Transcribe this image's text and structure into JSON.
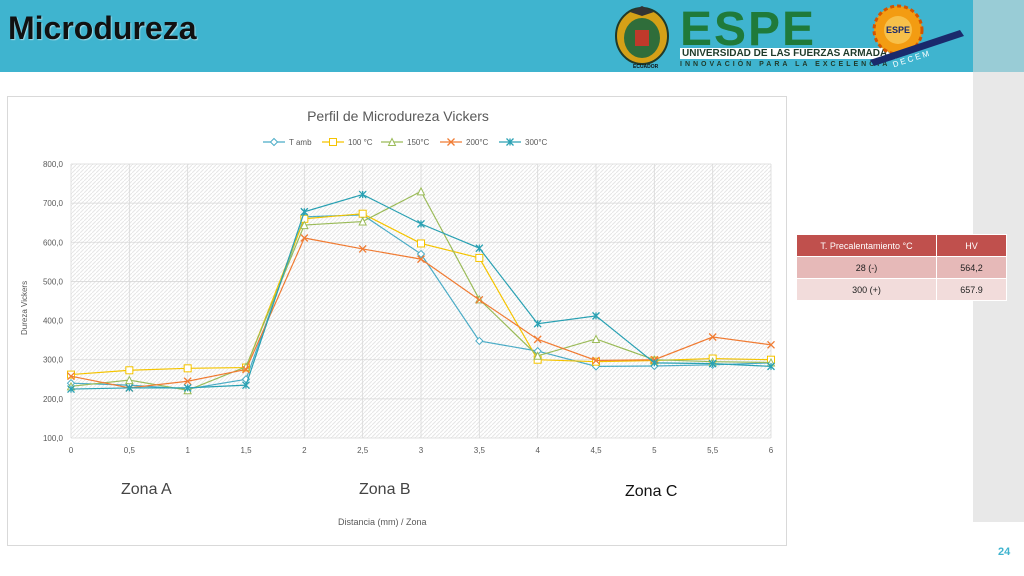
{
  "slide": {
    "title": "Microdureza",
    "page_number": "24"
  },
  "logo": {
    "name": "ESPE",
    "subtitle": "UNIVERSIDAD DE LAS FUERZAS ARMADAS",
    "slogan": "INNOVACIÓN PARA LA EXCELENCIA",
    "seal_caption": "ECUADOR",
    "badge_text": "ESPE",
    "banner_text": "D E C E M"
  },
  "zones": {
    "a": "Zona A",
    "b": "Zona B",
    "c": "Zona C"
  },
  "table": {
    "headers": [
      "T. Precalentamiento °C",
      "HV"
    ],
    "rows": [
      [
        "28  (-)",
        "564,2"
      ],
      [
        "300 (+)",
        "657.9"
      ]
    ]
  },
  "colors": {
    "header": "#3fb4cf",
    "t_amb": "#4bacc6",
    "c100": "#f5c400",
    "c150": "#9bbb59",
    "c200": "#f07c34",
    "c300": "#2aa1b3",
    "table_header": "#c0504d"
  },
  "chart_data": {
    "type": "line",
    "title": "Perfil de Microdureza Vickers",
    "xlabel": "Distancia (mm) / Zona",
    "ylabel": "Dureza Vickers",
    "x": [
      0,
      0.5,
      1,
      1.5,
      2,
      2.5,
      3,
      3.5,
      4,
      4.5,
      5,
      5.5,
      6
    ],
    "x_tick_labels": [
      "0",
      "0,5",
      "1",
      "1,5",
      "2",
      "2,5",
      "3",
      "3,5",
      "4",
      "4,5",
      "5",
      "5,5",
      "6"
    ],
    "y_tick_labels": [
      "100,0",
      "200,0",
      "300,0",
      "400,0",
      "500,0",
      "600,0",
      "700,0",
      "800,0"
    ],
    "ylim": [
      100,
      800
    ],
    "grid": true,
    "legend_position": "top",
    "series": [
      {
        "name": "T amb",
        "color": "#4bacc6",
        "marker": "diamond",
        "values": [
          240,
          235,
          225,
          250,
          665,
          670,
          570,
          348,
          322,
          283,
          284,
          287,
          292
        ]
      },
      {
        "name": "100 °C",
        "color": "#f5c400",
        "marker": "square",
        "values": [
          262,
          273,
          278,
          280,
          660,
          673,
          597,
          560,
          300,
          295,
          298,
          303,
          300
        ]
      },
      {
        "name": "150°C",
        "color": "#9bbb59",
        "marker": "triangle",
        "values": [
          232,
          248,
          222,
          282,
          644,
          653,
          730,
          454,
          310,
          353,
          300,
          295,
          293
        ]
      },
      {
        "name": "200°C",
        "color": "#f07c34",
        "marker": "x",
        "values": [
          258,
          228,
          245,
          275,
          611,
          583,
          557,
          453,
          352,
          298,
          300,
          358,
          338
        ]
      },
      {
        "name": "300°C",
        "color": "#2aa1b3",
        "marker": "star",
        "values": [
          225,
          228,
          228,
          235,
          678,
          722,
          647,
          585,
          392,
          412,
          292,
          290,
          283
        ]
      }
    ]
  }
}
